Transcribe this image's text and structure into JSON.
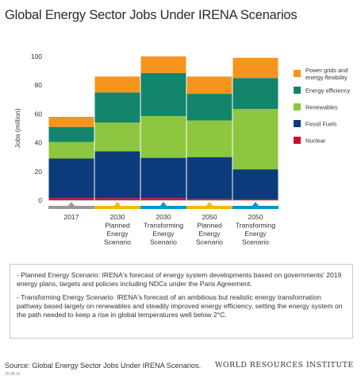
{
  "title": "Global Energy Sector Jobs Under IRENA Scenarios",
  "chart_data": {
    "type": "bar",
    "stacked": true,
    "ylabel": "Jobs (million)",
    "ylim": [
      0,
      100
    ],
    "yticks": [
      "0",
      "20",
      "40",
      "60",
      "80",
      "100"
    ],
    "categories": [
      [
        "2017"
      ],
      [
        "2030",
        "Planned",
        "Energy",
        "Scenario"
      ],
      [
        "2030",
        "Transforming",
        "Energy",
        "Scenario"
      ],
      [
        "2050",
        "Planned",
        "Energy",
        "Scenario"
      ],
      [
        "2050",
        "Transforming",
        "Energy",
        "Scenario"
      ]
    ],
    "series": [
      {
        "name": "Nuclear",
        "color": "#c8102e",
        "values": [
          1.5,
          1.5,
          1.5,
          1.0,
          0.8
        ]
      },
      {
        "name": "Fossil Fuels",
        "color": "#0b3b7a",
        "values": [
          27.5,
          32.5,
          28.0,
          29.0,
          20.7
        ]
      },
      {
        "name": "Renewables",
        "color": "#8dc63f",
        "values": [
          11.5,
          20.0,
          29.0,
          25.5,
          42.0
        ]
      },
      {
        "name": "Energy efficiency",
        "color": "#12856b",
        "values": [
          10.5,
          21.0,
          30.0,
          18.5,
          21.5
        ]
      },
      {
        "name": "Power grids and energy flexibility",
        "legend_lines": [
          "Power grids and",
          "energy flexibility"
        ],
        "color": "#f7941d",
        "values": [
          7.0,
          11.0,
          11.5,
          12.0,
          14.0
        ]
      }
    ],
    "band_colors": [
      "#999999",
      "#f5b800",
      "#0099cc",
      "#f5b800",
      "#0099cc"
    ]
  },
  "notes": [
    "- Planned Energy Scenario: IRENA's forecast of energy system developments based on governments' 2019 energy plans, targets and policies including NDCs under the Paris Agreement.",
    "- Transforming Energy Scenario: IRENA's forecast of an ambitious but realistic energy transformation pathway based largely on renewables and steadily improved energy efficiency, setting the energy system on the path needed to keep a rise in global temperatures well below 2°C."
  ],
  "source": "Source: Global Energy Sector Jobs Under IRENA Scenarios.",
  "code": "20.08.10",
  "logo_text": "WORLD RESOURCES INSTITUTE"
}
